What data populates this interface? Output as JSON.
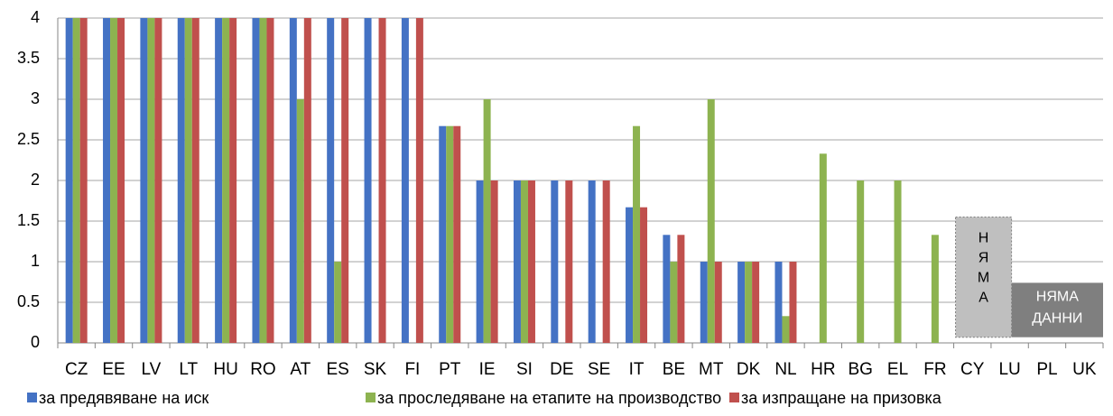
{
  "chart_data": {
    "type": "bar",
    "categories": [
      "CZ",
      "EE",
      "LV",
      "LT",
      "HU",
      "RO",
      "AT",
      "ES",
      "SK",
      "FI",
      "PT",
      "IE",
      "SI",
      "DE",
      "SE",
      "IT",
      "BE",
      "MT",
      "DK",
      "NL",
      "HR",
      "BG",
      "EL",
      "FR",
      "CY",
      "LU",
      "PL",
      "UK"
    ],
    "series": [
      {
        "name": "за предявяване на иск",
        "color": "#4472c4",
        "values": [
          4,
          4,
          4,
          4,
          4,
          4,
          4,
          4,
          4,
          4,
          2.67,
          2,
          2,
          2,
          2,
          1.67,
          1.33,
          1,
          1,
          1,
          null,
          null,
          null,
          null,
          null,
          null,
          null,
          null
        ]
      },
      {
        "name": "за проследяване на етапите на производство",
        "color": "#8db350",
        "values": [
          4,
          4,
          4,
          4,
          4,
          4,
          3,
          1,
          null,
          null,
          2.67,
          3,
          2,
          null,
          null,
          2.67,
          1,
          3,
          1,
          0.33,
          2.33,
          2,
          2,
          1.33,
          null,
          null,
          null,
          null
        ]
      },
      {
        "name": "за изпращане на призовка",
        "color": "#c0504d",
        "values": [
          4,
          4,
          4,
          4,
          4,
          4,
          4,
          4,
          4,
          4,
          2.67,
          2,
          2,
          2,
          2,
          1.67,
          1.33,
          1,
          1,
          1,
          null,
          null,
          null,
          null,
          null,
          null,
          null,
          null
        ]
      }
    ],
    "ylim": [
      0,
      4
    ],
    "yticks": [
      0,
      0.5,
      1,
      1.5,
      2,
      2.5,
      3,
      3.5,
      4
    ],
    "grid": true,
    "legend": "bottom",
    "annotations": [
      {
        "lines": [
          "Н",
          "Я",
          "М",
          "А"
        ]
      },
      {
        "lines": [
          "НЯМА",
          "ДАННИ"
        ]
      }
    ]
  }
}
